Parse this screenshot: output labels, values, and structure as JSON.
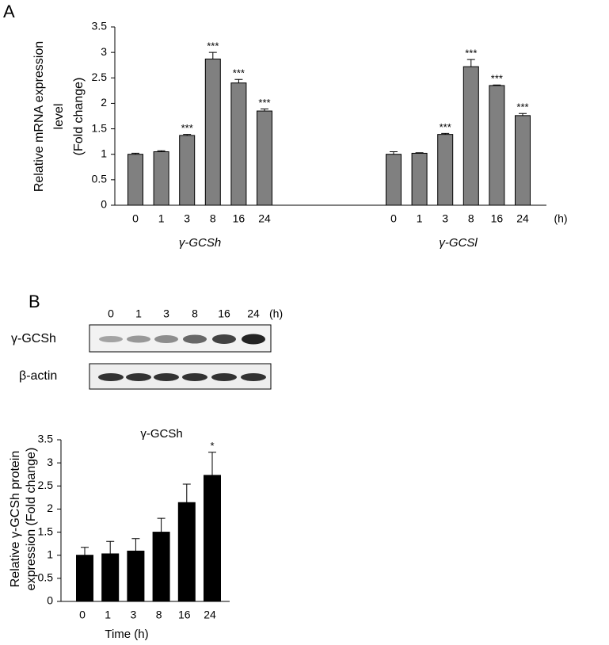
{
  "panel_labels": [
    "A",
    "B"
  ],
  "chart_data": [
    {
      "type": "grouped_bar",
      "ylabel_lines": [
        "Relative mRNA expression",
        "level",
        "(Fold change)"
      ],
      "ylim": [
        0,
        3.5
      ],
      "yticks": [
        0,
        0.5,
        1,
        1.5,
        2,
        2.5,
        3,
        3.5
      ],
      "x_unit": "(h)",
      "color": "#808080",
      "groups": [
        {
          "name": "γ-GCSh",
          "categories": [
            "0",
            "1",
            "3",
            "8",
            "16",
            "24"
          ],
          "values": [
            1.0,
            1.05,
            1.37,
            2.87,
            2.4,
            1.85
          ],
          "errors": [
            0.02,
            0.02,
            0.02,
            0.13,
            0.07,
            0.04
          ],
          "annotations": [
            null,
            null,
            "***",
            "***",
            "***",
            "***"
          ]
        },
        {
          "name": "γ-GCSl",
          "categories": [
            "0",
            "1",
            "3",
            "8",
            "16",
            "24"
          ],
          "values": [
            1.0,
            1.02,
            1.39,
            2.72,
            2.35,
            1.76
          ],
          "errors": [
            0.05,
            0.01,
            0.02,
            0.14,
            0.01,
            0.04
          ],
          "annotations": [
            null,
            null,
            "***",
            "***",
            "***",
            "***"
          ]
        }
      ]
    },
    {
      "type": "bar",
      "title": "γ-GCSh",
      "ylabel_lines": [
        "Relative γ-GCSh protein",
        "expression (Fold change)"
      ],
      "xlabel": "Time (h)",
      "categories": [
        "0",
        "1",
        "3",
        "8",
        "16",
        "24"
      ],
      "values": [
        1.0,
        1.03,
        1.09,
        1.5,
        2.14,
        2.73
      ],
      "errors": [
        0.17,
        0.27,
        0.27,
        0.3,
        0.4,
        0.5
      ],
      "annotations": [
        null,
        null,
        null,
        null,
        null,
        "*"
      ],
      "color": "#000000",
      "ylim": [
        0,
        3.5
      ],
      "yticks": [
        0,
        0.5,
        1,
        1.5,
        2,
        2.5,
        3,
        3.5
      ]
    }
  ],
  "blot": {
    "lanes": [
      "0",
      "1",
      "3",
      "8",
      "16",
      "24"
    ],
    "unit": "(h)",
    "rows": [
      "γ-GCSh",
      "β-actin"
    ]
  }
}
